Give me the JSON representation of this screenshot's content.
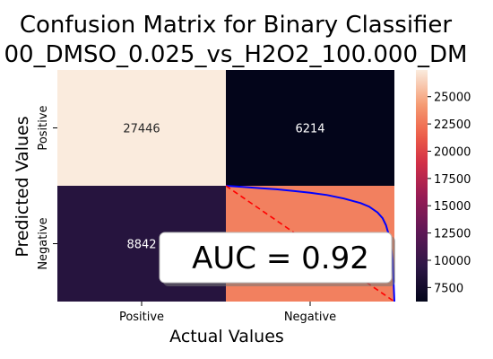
{
  "chart_data": [
    {
      "type": "heatmap",
      "title_line1": "Confusion Matrix for Binary Classifier",
      "title_line2": "00_DMSO_0.025_vs_H2O2_100.000_DM",
      "xlabel": "Actual Values",
      "ylabel": "Predicted Values",
      "x_categories": [
        "Positive",
        "Negative"
      ],
      "y_categories": [
        "Positive",
        "Negative"
      ],
      "values": [
        [
          27446,
          6214
        ],
        [
          8842,
          23000
        ]
      ],
      "cell_labels": [
        [
          "27446",
          "6214"
        ],
        [
          "8842",
          ""
        ]
      ],
      "colorbar": {
        "range": [
          6214,
          27446
        ],
        "ticks": [
          7500,
          10000,
          12500,
          15000,
          17500,
          20000,
          22500,
          25000
        ],
        "tick_labels": [
          "7500",
          "10000",
          "12500",
          "15000",
          "17500",
          "20000",
          "22500",
          "25000"
        ]
      }
    },
    {
      "type": "line",
      "series": [
        {
          "color": "#0000ff",
          "x": [
            0.0,
            0.05,
            0.1,
            0.2,
            0.3,
            0.4,
            0.5,
            0.6,
            0.7,
            0.8,
            0.85,
            0.9,
            0.93,
            0.95,
            0.97,
            0.98,
            0.99,
            1.0
          ],
          "y": [
            1.0,
            0.995,
            0.99,
            0.98,
            0.97,
            0.955,
            0.94,
            0.92,
            0.89,
            0.85,
            0.82,
            0.77,
            0.72,
            0.66,
            0.56,
            0.48,
            0.36,
            0.0
          ]
        },
        {
          "style": "dashed",
          "color": "#ff0000",
          "x": [
            0,
            1
          ],
          "y": [
            1,
            0
          ]
        }
      ],
      "annotation": "AUC = 0.92"
    }
  ]
}
